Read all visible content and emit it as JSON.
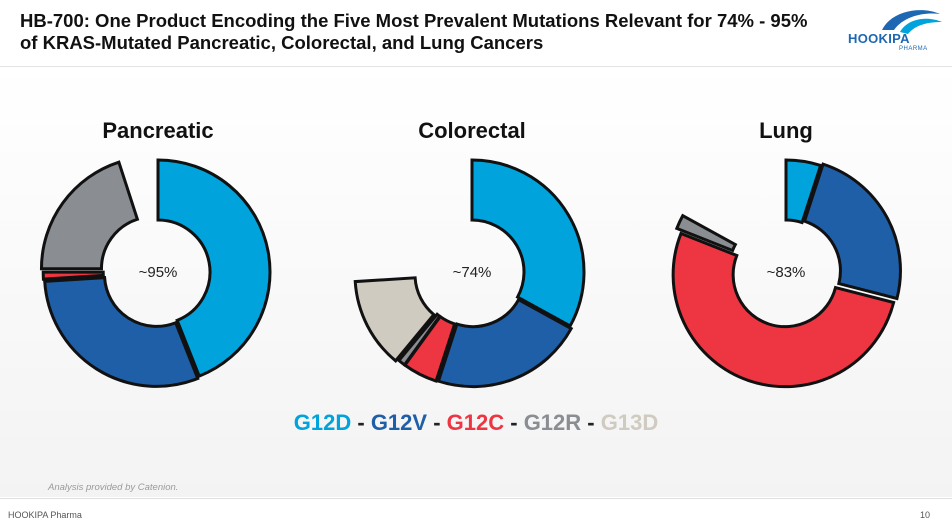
{
  "slide": {
    "title": "HB-700: One Product Encoding the Five Most Prevalent Mutations Relevant for 74% - 95% of KRAS-Mutated Pancreatic, Colorectal, and Lung Cancers",
    "logo_text": "HOOKIPA",
    "logo_sub": "PHARMA",
    "source_note": "Analysis provided by Catenion.",
    "footer_left": "HOOKIPA Pharma",
    "page_number": "10"
  },
  "legend": {
    "items": [
      {
        "label": "G12D",
        "color": "#00a3dc"
      },
      {
        "label": "G12V",
        "color": "#1f5fa8"
      },
      {
        "label": "G12C",
        "color": "#ee3542"
      },
      {
        "label": "G12R",
        "color": "#8a8d92"
      },
      {
        "label": "G13D",
        "color": "#cfcbc0"
      }
    ],
    "separator": "-"
  },
  "chart_data": [
    {
      "type": "pie",
      "title": "Pancreatic",
      "center_label": "~95%",
      "categories": [
        "G12D",
        "G12V",
        "G12C",
        "G12R",
        "G13D"
      ],
      "values": [
        44,
        30,
        1,
        20,
        0
      ],
      "colors": [
        "#00a3dc",
        "#1f5fa8",
        "#ee3542",
        "#8a8d92",
        "#cfcbc0"
      ]
    },
    {
      "type": "pie",
      "title": "Colorectal",
      "center_label": "~74%",
      "categories": [
        "G12D",
        "G12V",
        "G12C",
        "G12R",
        "G13D"
      ],
      "values": [
        33,
        22,
        5,
        1,
        13
      ],
      "colors": [
        "#00a3dc",
        "#1f5fa8",
        "#ee3542",
        "#8a8d92",
        "#cfcbc0"
      ]
    },
    {
      "type": "pie",
      "title": "Lung",
      "center_label": "~83%",
      "categories": [
        "G12D",
        "G12V",
        "G12C",
        "G12R",
        "G13D"
      ],
      "values": [
        5,
        24,
        52,
        2,
        0
      ],
      "colors": [
        "#00a3dc",
        "#1f5fa8",
        "#ee3542",
        "#8a8d92",
        "#cfcbc0"
      ]
    }
  ]
}
